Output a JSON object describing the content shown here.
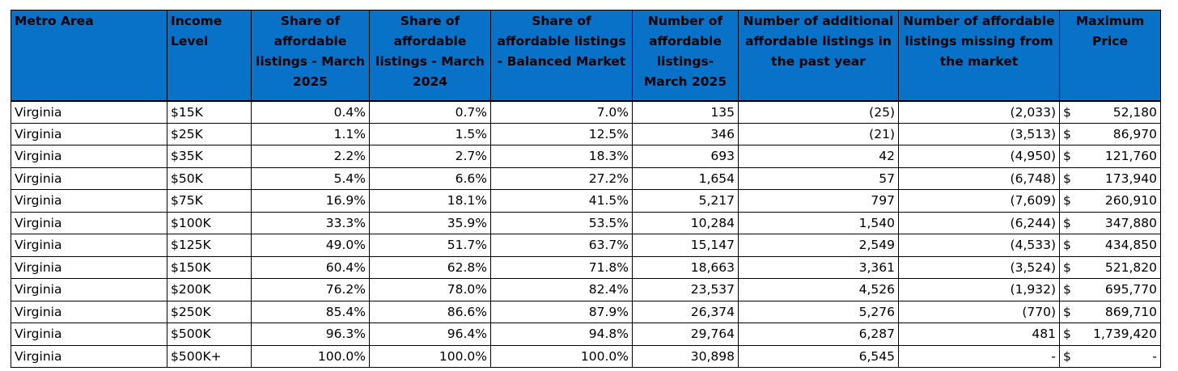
{
  "headers": [
    "Metro Area",
    "Income Level",
    "Share of affordable listings - March 2025",
    "Share of affordable listings - March 2024",
    "Share of affordable listings - Balanced Market",
    "Number of affordable listings-March 2025",
    "Number of additional affordable listings in the past year",
    "Number of affordable listings missing from the market",
    "Maximum Price"
  ],
  "currency_symbol": "$",
  "rows": [
    {
      "metro": "Virginia",
      "income": "$15K",
      "share_2025": "0.4%",
      "share_2024": "0.7%",
      "share_balanced": "7.0%",
      "num_2025": "135",
      "num_additional": "(25)",
      "num_missing": "(2,033)",
      "max_price": "52,180"
    },
    {
      "metro": "Virginia",
      "income": "$25K",
      "share_2025": "1.1%",
      "share_2024": "1.5%",
      "share_balanced": "12.5%",
      "num_2025": "346",
      "num_additional": "(21)",
      "num_missing": "(3,513)",
      "max_price": "86,970"
    },
    {
      "metro": "Virginia",
      "income": "$35K",
      "share_2025": "2.2%",
      "share_2024": "2.7%",
      "share_balanced": "18.3%",
      "num_2025": "693",
      "num_additional": "42",
      "num_missing": "(4,950)",
      "max_price": "121,760"
    },
    {
      "metro": "Virginia",
      "income": "$50K",
      "share_2025": "5.4%",
      "share_2024": "6.6%",
      "share_balanced": "27.2%",
      "num_2025": "1,654",
      "num_additional": "57",
      "num_missing": "(6,748)",
      "max_price": "173,940"
    },
    {
      "metro": "Virginia",
      "income": "$75K",
      "share_2025": "16.9%",
      "share_2024": "18.1%",
      "share_balanced": "41.5%",
      "num_2025": "5,217",
      "num_additional": "797",
      "num_missing": "(7,609)",
      "max_price": "260,910"
    },
    {
      "metro": "Virginia",
      "income": "$100K",
      "share_2025": "33.3%",
      "share_2024": "35.9%",
      "share_balanced": "53.5%",
      "num_2025": "10,284",
      "num_additional": "1,540",
      "num_missing": "(6,244)",
      "max_price": "347,880"
    },
    {
      "metro": "Virginia",
      "income": "$125K",
      "share_2025": "49.0%",
      "share_2024": "51.7%",
      "share_balanced": "63.7%",
      "num_2025": "15,147",
      "num_additional": "2,549",
      "num_missing": "(4,533)",
      "max_price": "434,850"
    },
    {
      "metro": "Virginia",
      "income": "$150K",
      "share_2025": "60.4%",
      "share_2024": "62.8%",
      "share_balanced": "71.8%",
      "num_2025": "18,663",
      "num_additional": "3,361",
      "num_missing": "(3,524)",
      "max_price": "521,820"
    },
    {
      "metro": "Virginia",
      "income": "$200K",
      "share_2025": "76.2%",
      "share_2024": "78.0%",
      "share_balanced": "82.4%",
      "num_2025": "23,537",
      "num_additional": "4,526",
      "num_missing": "(1,932)",
      "max_price": "695,770"
    },
    {
      "metro": "Virginia",
      "income": "$250K",
      "share_2025": "85.4%",
      "share_2024": "86.6%",
      "share_balanced": "87.9%",
      "num_2025": "26,374",
      "num_additional": "5,276",
      "num_missing": "(770)",
      "max_price": "869,710"
    },
    {
      "metro": "Virginia",
      "income": "$500K",
      "share_2025": "96.3%",
      "share_2024": "96.4%",
      "share_balanced": "94.8%",
      "num_2025": "29,764",
      "num_additional": "6,287",
      "num_missing": "481",
      "max_price": "1,739,420"
    },
    {
      "metro": "Virginia",
      "income": "$500K+",
      "share_2025": "100.0%",
      "share_2024": "100.0%",
      "share_balanced": "100.0%",
      "num_2025": "30,898",
      "num_additional": "6,545",
      "num_missing": "-",
      "max_price": "-"
    }
  ],
  "colors": {
    "header_fill": "#0872c8",
    "grid_line": "#000000",
    "text": "#000000"
  }
}
